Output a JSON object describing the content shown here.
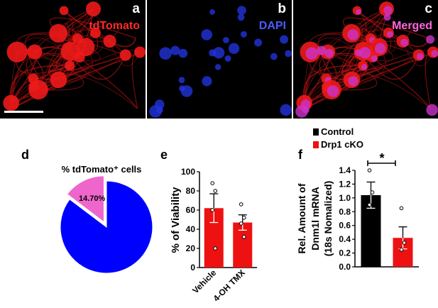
{
  "micrographs": [
    {
      "letter": "a",
      "channel": "tdTomato",
      "channel_color": "#ff2a2a"
    },
    {
      "letter": "b",
      "channel": "DAPI",
      "channel_color": "#4a5bff"
    },
    {
      "letter": "c",
      "channel": "Merged",
      "channel_color": "#ff66dd"
    }
  ],
  "colors": {
    "pie_main": "#0000ff",
    "pie_slice": "#ee66cc",
    "bar_red": "#ee1111",
    "bar_black": "#000000"
  },
  "chart_data": [
    {
      "panel": "d",
      "type": "pie",
      "title": "% tdTomato⁺ cells",
      "slices": [
        {
          "label": "14.70%",
          "value": 14.7,
          "color": "#ee66cc",
          "exploded": true
        },
        {
          "label": "",
          "value": 85.3,
          "color": "#0000ff",
          "exploded": false
        }
      ]
    },
    {
      "panel": "e",
      "type": "bar",
      "categories": [
        "Vehicle",
        "4-OH TMX"
      ],
      "values": [
        62,
        47
      ],
      "errors": [
        15,
        8
      ],
      "points": [
        [
          88,
          80,
          60,
          20
        ],
        [
          66,
          52,
          46,
          32
        ]
      ],
      "ylabel": "% of Viability",
      "ylim": [
        0,
        100
      ],
      "yticks": [
        "0",
        "20",
        "40",
        "60",
        "80",
        "100"
      ],
      "color": "#ee1111"
    },
    {
      "panel": "f",
      "type": "bar",
      "categories": [
        "Control",
        "Drp1 cKO"
      ],
      "values": [
        1.04,
        0.42
      ],
      "errors": [
        0.19,
        0.16
      ],
      "points": [
        [
          1.4,
          1.08,
          0.9
        ],
        [
          0.85,
          0.35,
          0.25
        ]
      ],
      "ylabel_lines": [
        "Rel. Amount of",
        "Dnm1l mRNA",
        "(18s Nomalized)"
      ],
      "ylim": [
        0,
        1.4
      ],
      "yticks": [
        "0.0",
        "0.2",
        "0.4",
        "0.6",
        "0.8",
        "1.0",
        "1.2",
        "1.4"
      ],
      "legend": [
        {
          "name": "Control",
          "color": "#000000"
        },
        {
          "name": "Drp1 cKO",
          "color": "#ee1111"
        }
      ],
      "significance": "*"
    }
  ]
}
